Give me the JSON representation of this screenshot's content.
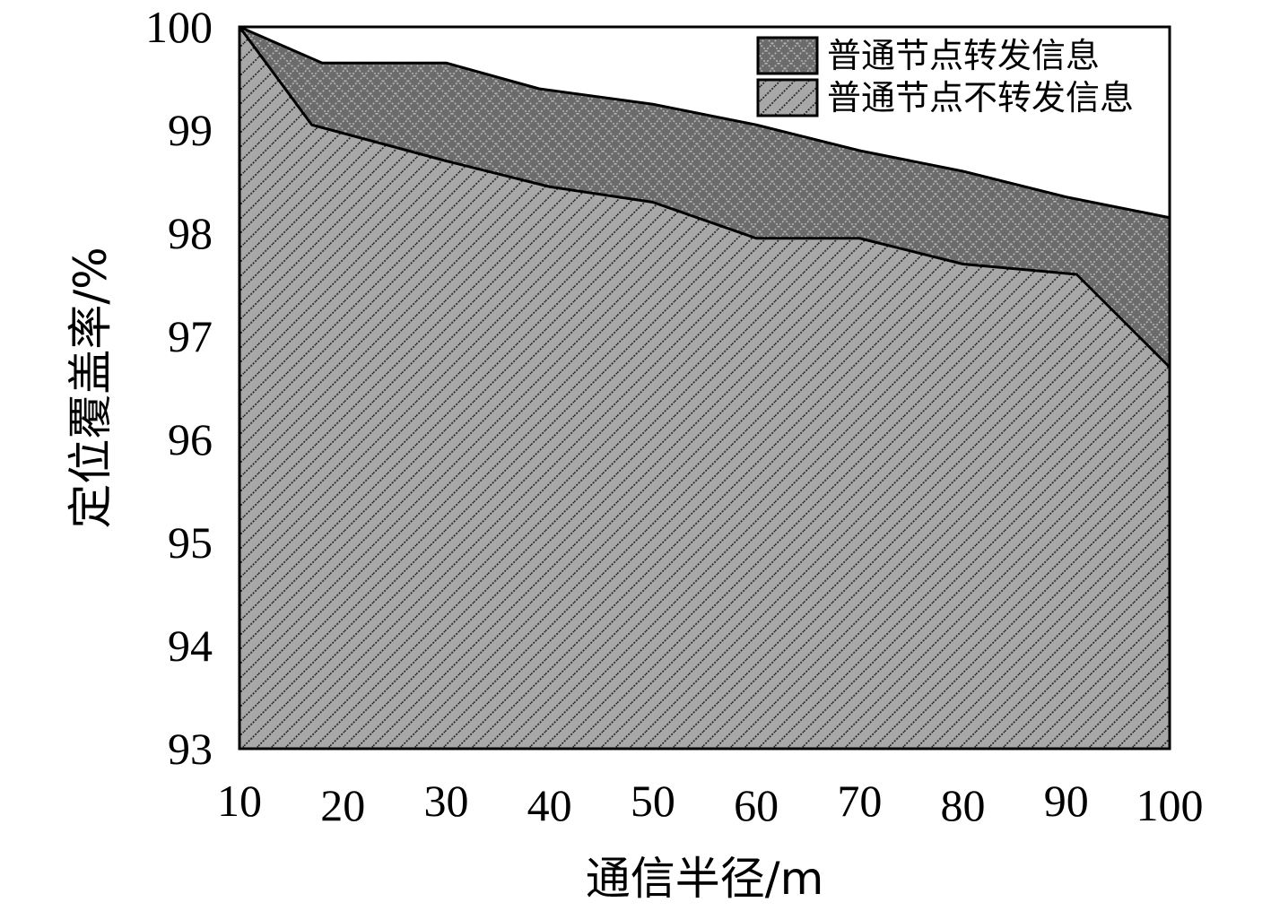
{
  "chart_data": {
    "type": "area",
    "xlabel": "通信半径/m",
    "ylabel": "定位覆盖率/%",
    "xlim": [
      10,
      100
    ],
    "ylim": [
      93,
      100
    ],
    "x_ticks": [
      "10",
      "20",
      "30",
      "40",
      "50",
      "60",
      "70",
      "80",
      "90",
      "100"
    ],
    "y_ticks": [
      "93",
      "94",
      "95",
      "96",
      "97",
      "98",
      "99",
      "100"
    ],
    "legend_position": "top-right",
    "grid": false,
    "series": [
      {
        "name": "普通节点转发信息",
        "fill": "#6b6b6b",
        "pattern": "crosshatch",
        "x": [
          10,
          18,
          30,
          39,
          50,
          60,
          70,
          80,
          90,
          100
        ],
        "values": [
          100,
          99.65,
          99.65,
          99.4,
          99.25,
          99.05,
          98.8,
          98.6,
          98.35,
          98.15
        ]
      },
      {
        "name": "普通节点不转发信息",
        "fill": "#a8a8a8",
        "pattern": "diagonal",
        "x": [
          10,
          17,
          30,
          40,
          50,
          60,
          70,
          80,
          91,
          100
        ],
        "values": [
          100,
          99.05,
          98.7,
          98.45,
          98.3,
          97.95,
          97.95,
          97.7,
          97.6,
          96.7
        ]
      }
    ]
  }
}
